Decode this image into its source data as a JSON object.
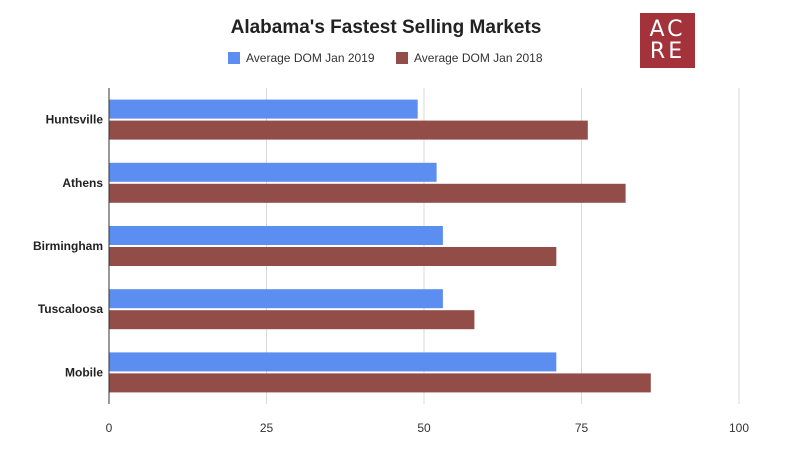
{
  "logo": {
    "line1": "AC",
    "line2": "RE",
    "color": "#a3323a"
  },
  "chart_data": {
    "type": "bar",
    "orientation": "horizontal",
    "title": "Alabama's Fastest Selling Markets",
    "categories": [
      "Huntsville",
      "Athens",
      "Birmingham",
      "Tuscaloosa",
      "Mobile"
    ],
    "series": [
      {
        "name": "Average DOM Jan 2019",
        "color": "#5b8ef0",
        "values": [
          49,
          52,
          53,
          53,
          71
        ]
      },
      {
        "name": "Average DOM Jan 2018",
        "color": "#924d48",
        "values": [
          76,
          82,
          71,
          58,
          86
        ]
      }
    ],
    "xlim": [
      0,
      100
    ],
    "xticks": [
      0,
      25,
      50,
      75,
      100
    ],
    "xlabel": "",
    "ylabel": "",
    "grid": true,
    "legend_position": "top"
  }
}
